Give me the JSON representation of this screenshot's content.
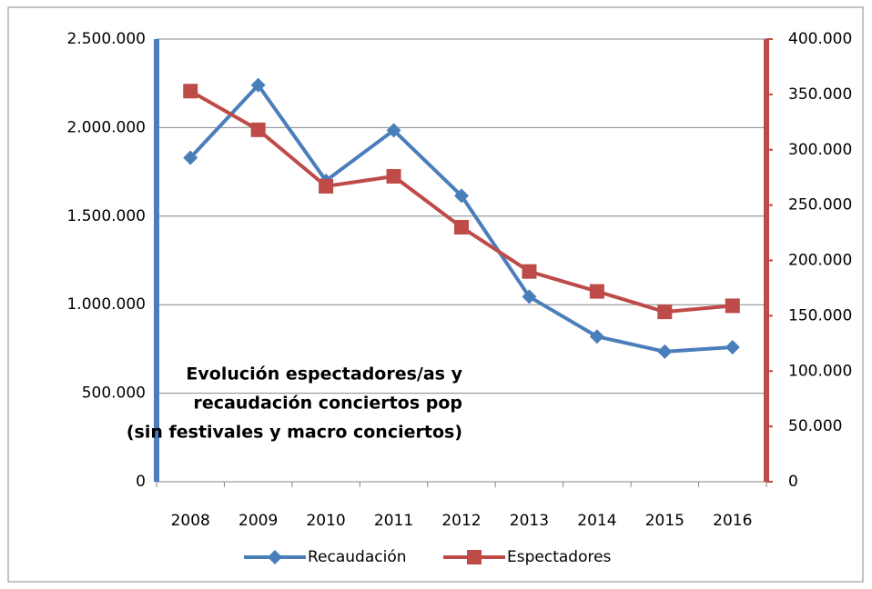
{
  "chart_data": {
    "type": "line",
    "title": [
      "Evolución espectadores/as y",
      "recaudación conciertos pop",
      "(sin festivales y macro conciertos)"
    ],
    "categories": [
      "2008",
      "2009",
      "2010",
      "2011",
      "2012",
      "2013",
      "2014",
      "2015",
      "2016"
    ],
    "series": [
      {
        "name": "Recaudación",
        "color": "#4a7ebb",
        "marker": "diamond",
        "values": [
          1830000,
          2240000,
          1700000,
          1985000,
          1615000,
          1045000,
          820000,
          735000,
          760000
        ]
      },
      {
        "name": "Espectadores",
        "color": "#be4b48",
        "marker": "square",
        "axis": "y2",
        "values": [
          353000,
          318000,
          267000,
          276000,
          230000,
          190000,
          172000,
          153500,
          159000
        ]
      }
    ],
    "ylim": [
      0,
      2500000
    ],
    "yticks": [
      0,
      {
        "value": 500000,
        "label": "500.000"
      },
      {
        "value": 1000000,
        "label": "1.000.000"
      },
      {
        "value": 1500000,
        "label": "1.500.000"
      },
      {
        "value": 2000000,
        "label": "2.000.000"
      },
      {
        "value": 2500000,
        "label": "2.500.000"
      }
    ],
    "y2lim": [
      0,
      400000
    ],
    "y2ticks": [
      0,
      {
        "value": 50000,
        "label": "50.000"
      },
      {
        "value": 100000,
        "label": "100.000"
      },
      {
        "value": 150000,
        "label": "150.000"
      },
      {
        "value": 200000,
        "label": "200.000"
      },
      {
        "value": 250000,
        "label": "250.000"
      },
      {
        "value": 300000,
        "label": "300.000"
      },
      {
        "value": 350000,
        "label": "350.000"
      },
      {
        "value": 400000,
        "label": "400.000"
      }
    ],
    "grid": true,
    "legend": "bottom"
  }
}
